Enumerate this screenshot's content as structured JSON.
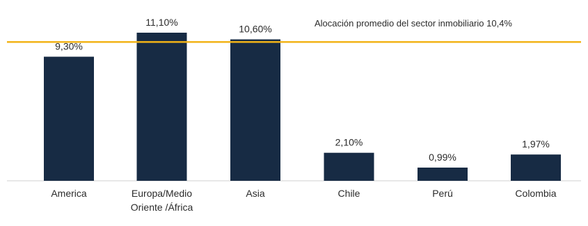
{
  "chart_data": {
    "type": "bar",
    "categories": [
      [
        "America"
      ],
      [
        "Europa/Medio",
        "Oriente /África"
      ],
      [
        "Asia"
      ],
      [
        "Chile"
      ],
      [
        "Perú"
      ],
      [
        "Colombia"
      ]
    ],
    "values": [
      9.3,
      11.1,
      10.6,
      2.1,
      0.99,
      1.97
    ],
    "value_labels": [
      "9,30%",
      "11,10%",
      "10,60%",
      "2,10%",
      "0,99%",
      "1,97%"
    ],
    "ylim": [
      0,
      11.1
    ],
    "reference_line": {
      "value": 10.4,
      "label": "Alocación promedio del sector inmobiliario 10,4%",
      "color": "#f2b316"
    },
    "bar_color": "#172b44",
    "grid": false,
    "legend": "none"
  }
}
